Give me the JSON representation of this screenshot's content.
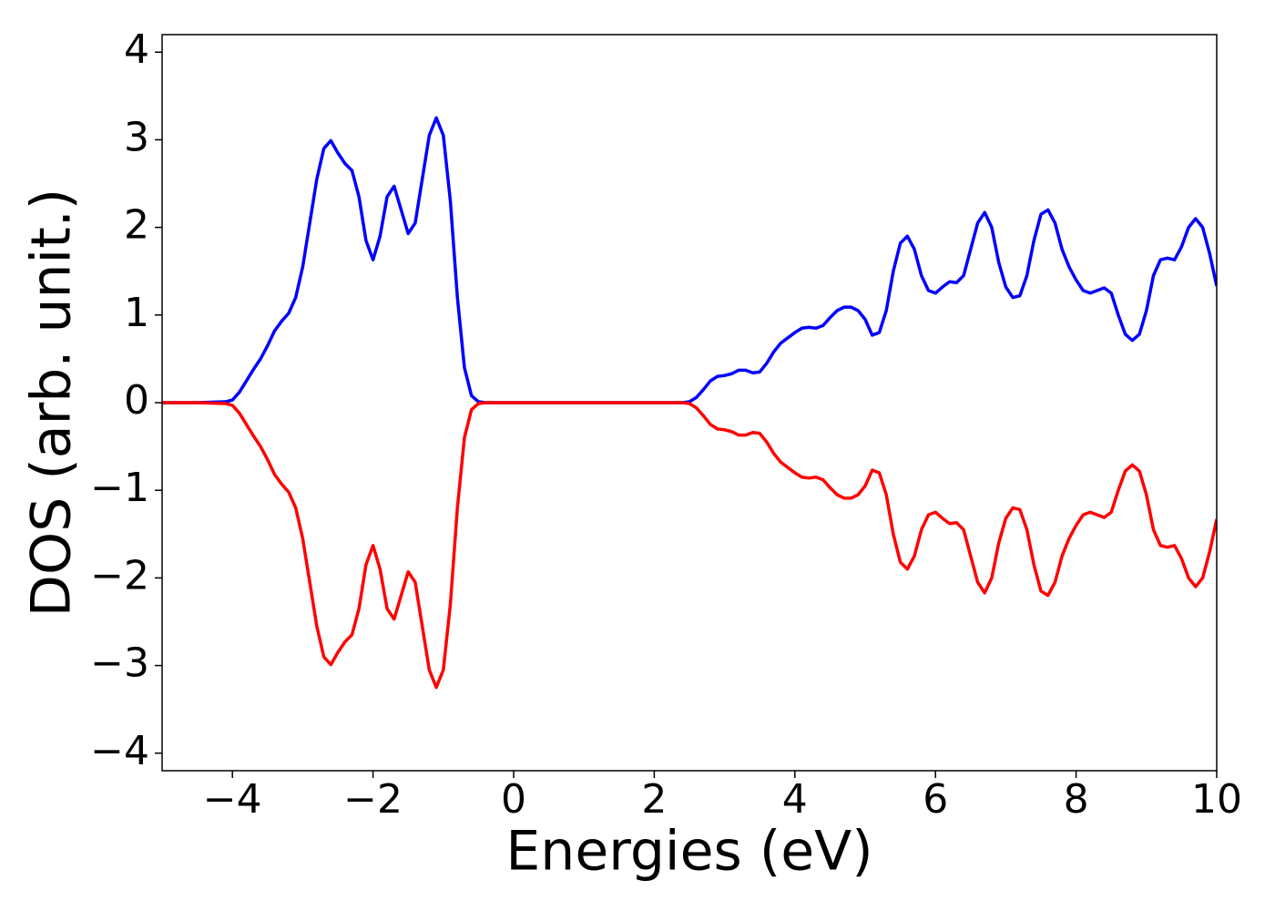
{
  "chart_data": {
    "type": "line",
    "xlabel": "Energies (eV)",
    "ylabel": "DOS (arb. unit.)",
    "x": [
      -5,
      -4.5,
      -4.1,
      -4.0,
      -3.9,
      -3.8,
      -3.7,
      -3.6,
      -3.5,
      -3.4,
      -3.3,
      -3.2,
      -3.1,
      -3.0,
      -2.9,
      -2.8,
      -2.7,
      -2.6,
      -2.5,
      -2.4,
      -2.3,
      -2.2,
      -2.1,
      -2.0,
      -1.9,
      -1.8,
      -1.7,
      -1.6,
      -1.5,
      -1.4,
      -1.3,
      -1.2,
      -1.1,
      -1.0,
      -0.9,
      -0.8,
      -0.7,
      -0.6,
      -0.5,
      -0.4,
      0,
      1,
      2,
      2.4,
      2.5,
      2.6,
      2.7,
      2.8,
      2.9,
      3.0,
      3.1,
      3.2,
      3.3,
      3.4,
      3.5,
      3.6,
      3.7,
      3.8,
      3.9,
      4.0,
      4.1,
      4.2,
      4.3,
      4.4,
      4.5,
      4.6,
      4.7,
      4.8,
      4.9,
      5.0,
      5.1,
      5.2,
      5.3,
      5.4,
      5.5,
      5.6,
      5.7,
      5.8,
      5.9,
      6.0,
      6.1,
      6.2,
      6.3,
      6.4,
      6.5,
      6.6,
      6.7,
      6.8,
      6.9,
      7.0,
      7.1,
      7.2,
      7.3,
      7.4,
      7.5,
      7.6,
      7.7,
      7.8,
      7.9,
      8.0,
      8.1,
      8.2,
      8.3,
      8.4,
      8.5,
      8.6,
      8.7,
      8.8,
      8.9,
      9.0,
      9.1,
      9.2,
      9.3,
      9.4,
      9.5,
      9.6,
      9.7,
      9.8,
      9.9,
      10.0
    ],
    "series": [
      {
        "color": "#0000ff",
        "values": [
          0,
          0,
          0.01,
          0.03,
          0.12,
          0.25,
          0.38,
          0.5,
          0.65,
          0.82,
          0.93,
          1.02,
          1.2,
          1.55,
          2.05,
          2.55,
          2.9,
          2.99,
          2.85,
          2.73,
          2.65,
          2.35,
          1.85,
          1.63,
          1.9,
          2.35,
          2.47,
          2.2,
          1.93,
          2.05,
          2.55,
          3.05,
          3.25,
          3.05,
          2.3,
          1.2,
          0.4,
          0.08,
          0.01,
          0,
          0,
          0,
          0,
          0,
          0.01,
          0.06,
          0.15,
          0.25,
          0.3,
          0.31,
          0.33,
          0.37,
          0.37,
          0.34,
          0.35,
          0.45,
          0.58,
          0.68,
          0.74,
          0.8,
          0.85,
          0.86,
          0.85,
          0.88,
          0.97,
          1.05,
          1.09,
          1.09,
          1.05,
          0.95,
          0.77,
          0.8,
          1.05,
          1.5,
          1.82,
          1.9,
          1.75,
          1.45,
          1.28,
          1.25,
          1.32,
          1.38,
          1.37,
          1.45,
          1.75,
          2.05,
          2.17,
          2.0,
          1.6,
          1.32,
          1.2,
          1.22,
          1.45,
          1.85,
          2.15,
          2.2,
          2.05,
          1.75,
          1.55,
          1.4,
          1.28,
          1.25,
          1.28,
          1.31,
          1.25,
          1.0,
          0.78,
          0.71,
          0.78,
          1.05,
          1.45,
          1.63,
          1.65,
          1.63,
          1.78,
          2.0,
          2.1,
          2.0,
          1.7,
          1.33
        ]
      },
      {
        "color": "#ff0000",
        "values": [
          0,
          0,
          -0.01,
          -0.03,
          -0.12,
          -0.25,
          -0.38,
          -0.5,
          -0.65,
          -0.82,
          -0.93,
          -1.02,
          -1.2,
          -1.55,
          -2.05,
          -2.55,
          -2.9,
          -2.99,
          -2.85,
          -2.73,
          -2.65,
          -2.35,
          -1.85,
          -1.63,
          -1.9,
          -2.35,
          -2.47,
          -2.2,
          -1.93,
          -2.05,
          -2.55,
          -3.05,
          -3.25,
          -3.05,
          -2.3,
          -1.2,
          -0.4,
          -0.08,
          -0.01,
          0,
          0,
          0,
          0,
          0,
          -0.01,
          -0.06,
          -0.15,
          -0.25,
          -0.3,
          -0.31,
          -0.33,
          -0.37,
          -0.37,
          -0.34,
          -0.35,
          -0.45,
          -0.58,
          -0.68,
          -0.74,
          -0.8,
          -0.85,
          -0.86,
          -0.85,
          -0.88,
          -0.97,
          -1.05,
          -1.09,
          -1.09,
          -1.05,
          -0.95,
          -0.77,
          -0.8,
          -1.05,
          -1.5,
          -1.82,
          -1.9,
          -1.75,
          -1.45,
          -1.28,
          -1.25,
          -1.32,
          -1.38,
          -1.37,
          -1.45,
          -1.75,
          -2.05,
          -2.17,
          -2.0,
          -1.6,
          -1.32,
          -1.2,
          -1.22,
          -1.45,
          -1.85,
          -2.15,
          -2.2,
          -2.05,
          -1.75,
          -1.55,
          -1.4,
          -1.28,
          -1.25,
          -1.28,
          -1.31,
          -1.25,
          -1.0,
          -0.78,
          -0.71,
          -0.78,
          -1.05,
          -1.45,
          -1.63,
          -1.65,
          -1.63,
          -1.78,
          -2.0,
          -2.1,
          -2.0,
          -1.7,
          -1.33
        ]
      }
    ],
    "xlim": [
      -5,
      10
    ],
    "xticks": [
      {
        "value": -4,
        "label": "−4"
      },
      {
        "value": -2,
        "label": "−2"
      },
      0,
      2,
      4,
      6,
      8,
      10
    ],
    "ylim": [
      -4.2,
      4.2
    ],
    "yticks": [
      {
        "value": -4,
        "label": "−4"
      },
      {
        "value": -3,
        "label": "−3"
      },
      {
        "value": -2,
        "label": "−2"
      },
      {
        "value": -1,
        "label": "−1"
      },
      0,
      1,
      2,
      3,
      4
    ],
    "grid": false
  }
}
